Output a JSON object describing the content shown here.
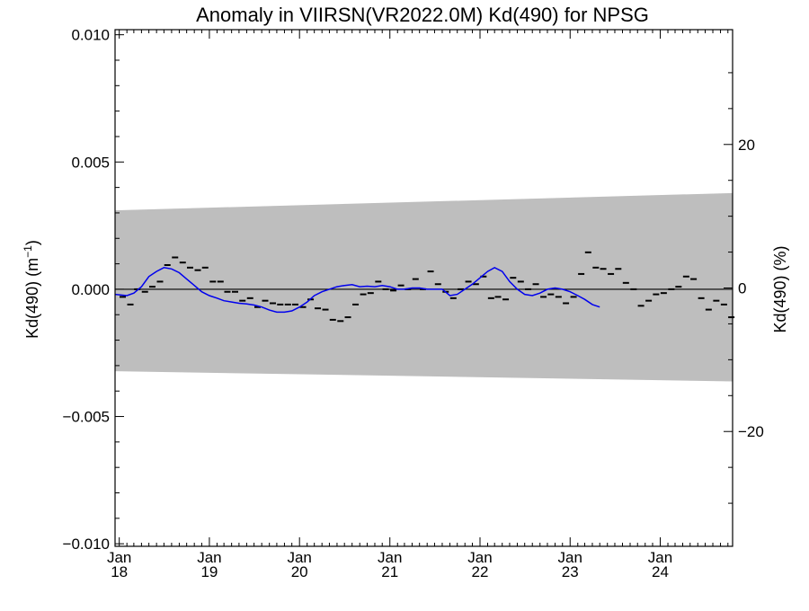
{
  "chart_data": {
    "type": "scatter",
    "title": "Anomaly in VIIRSN(VR2022.0M) Kd(490) for NPSG",
    "ylabel_left_main": "Kd(490) (m",
    "ylabel_left_sup": "−1",
    "ylabel_left_close": ")",
    "ylabel_right": "Kd(490) (%)",
    "x_range": [
      "2017-12-15",
      "2024-10-20"
    ],
    "ylim": [
      -0.0101,
      0.0102
    ],
    "ylim_right_pct": [
      -36,
      36
    ],
    "y_ticks": [
      {
        "value": -0.01,
        "label": "−0.010"
      },
      {
        "value": -0.005,
        "label": "−0.005"
      },
      {
        "value": 0.0,
        "label": "0.000"
      },
      {
        "value": 0.005,
        "label": "0.005"
      },
      {
        "value": 0.01,
        "label": "0.010"
      }
    ],
    "y_right_ticks": [
      {
        "value": -20,
        "label": "−20"
      },
      {
        "value": 0,
        "label": "0"
      },
      {
        "value": 20,
        "label": "20"
      }
    ],
    "x_ticks": [
      {
        "date": "2018-01-01",
        "month": "Jan",
        "year": "18"
      },
      {
        "date": "2019-01-01",
        "month": "Jan",
        "year": "19"
      },
      {
        "date": "2020-01-01",
        "month": "Jan",
        "year": "20"
      },
      {
        "date": "2021-01-01",
        "month": "Jan",
        "year": "21"
      },
      {
        "date": "2022-01-01",
        "month": "Jan",
        "year": "22"
      },
      {
        "date": "2023-01-01",
        "month": "Jan",
        "year": "23"
      },
      {
        "date": "2024-01-01",
        "month": "Jan",
        "year": "24"
      }
    ],
    "band": {
      "color": "#bebebe",
      "upper": [
        [
          "2017-12-15",
          0.0031
        ],
        [
          "2024-10-20",
          0.00378
        ]
      ],
      "lower": [
        [
          "2017-12-15",
          -0.00322
        ],
        [
          "2024-10-20",
          -0.00362
        ]
      ]
    },
    "zero_line_color": "#000000",
    "monthly_anomaly": {
      "color": "#000000",
      "points": [
        [
          "2018-01",
          -0.0003
        ],
        [
          "2018-02",
          -0.0006
        ],
        [
          "2018-03",
          0.0
        ],
        [
          "2018-04",
          -0.0001
        ],
        [
          "2018-05",
          0.0001
        ],
        [
          "2018-06",
          0.0003
        ],
        [
          "2018-07",
          0.00095
        ],
        [
          "2018-08",
          0.00125
        ],
        [
          "2018-09",
          0.00105
        ],
        [
          "2018-10",
          0.00085
        ],
        [
          "2018-11",
          0.00075
        ],
        [
          "2018-12",
          0.00085
        ],
        [
          "2019-01",
          0.0003
        ],
        [
          "2019-02",
          0.0003
        ],
        [
          "2019-03",
          -0.0001
        ],
        [
          "2019-04",
          -0.0001
        ],
        [
          "2019-05",
          -0.00045
        ],
        [
          "2019-06",
          -0.00035
        ],
        [
          "2019-07",
          -0.0007
        ],
        [
          "2019-08",
          -0.00045
        ],
        [
          "2019-09",
          -0.00055
        ],
        [
          "2019-10",
          -0.0006
        ],
        [
          "2019-11",
          -0.0006
        ],
        [
          "2019-12",
          -0.0006
        ],
        [
          "2020-01",
          -0.0007
        ],
        [
          "2020-02",
          -0.0004
        ],
        [
          "2020-03",
          -0.00075
        ],
        [
          "2020-04",
          -0.0008
        ],
        [
          "2020-05",
          -0.0012
        ],
        [
          "2020-06",
          -0.00125
        ],
        [
          "2020-07",
          -0.0011
        ],
        [
          "2020-08",
          -0.0006
        ],
        [
          "2020-09",
          -0.0002
        ],
        [
          "2020-10",
          -0.00015
        ],
        [
          "2020-11",
          0.0003
        ],
        [
          "2020-12",
          0.0
        ],
        [
          "2021-01",
          -5e-05
        ],
        [
          "2021-02",
          0.00015
        ],
        [
          "2021-03",
          0.0
        ],
        [
          "2021-04",
          0.0004
        ],
        [
          "2021-05",
          0.0
        ],
        [
          "2021-06",
          0.0007
        ],
        [
          "2021-07",
          0.0002
        ],
        [
          "2021-08",
          -0.0001
        ],
        [
          "2021-09",
          -0.00035
        ],
        [
          "2021-10",
          0.0
        ],
        [
          "2021-11",
          0.0003
        ],
        [
          "2021-12",
          0.0002
        ],
        [
          "2022-01",
          0.0005
        ],
        [
          "2022-02",
          -0.00035
        ],
        [
          "2022-03",
          -0.0003
        ],
        [
          "2022-04",
          -0.0004
        ],
        [
          "2022-05",
          0.00045
        ],
        [
          "2022-06",
          0.0003
        ],
        [
          "2022-07",
          0.0
        ],
        [
          "2022-08",
          0.0002
        ],
        [
          "2022-09",
          -0.0003
        ],
        [
          "2022-10",
          -0.0002
        ],
        [
          "2022-11",
          -0.0003
        ],
        [
          "2022-12",
          -0.00055
        ],
        [
          "2023-01",
          -0.0003
        ],
        [
          "2023-02",
          0.0006
        ],
        [
          "2023-03",
          0.00145
        ],
        [
          "2023-04",
          0.00085
        ],
        [
          "2023-05",
          0.0008
        ],
        [
          "2023-06",
          0.0006
        ],
        [
          "2023-07",
          0.0008
        ],
        [
          "2023-08",
          0.00025
        ],
        [
          "2023-09",
          0.0
        ],
        [
          "2023-10",
          -0.00065
        ],
        [
          "2023-11",
          -0.00045
        ],
        [
          "2023-12",
          -0.0002
        ],
        [
          "2024-01",
          -0.00015
        ],
        [
          "2024-02",
          0.0
        ],
        [
          "2024-03",
          0.0001
        ],
        [
          "2024-04",
          0.0005
        ],
        [
          "2024-05",
          0.0004
        ],
        [
          "2024-06",
          -0.00035
        ],
        [
          "2024-07",
          -0.0008
        ],
        [
          "2024-08",
          -0.00045
        ],
        [
          "2024-09",
          -0.0006
        ],
        [
          "2024-10",
          -0.0011
        ]
      ]
    },
    "smoothed_anomaly": {
      "color": "#0000ee",
      "points": [
        [
          "2017-12-15",
          -0.0002
        ],
        [
          "2018-02-01",
          -0.00025
        ],
        [
          "2018-03-01",
          -0.00015
        ],
        [
          "2018-04-01",
          0.0001
        ],
        [
          "2018-05-01",
          0.0005
        ],
        [
          "2018-06-01",
          0.0007
        ],
        [
          "2018-07-01",
          0.00085
        ],
        [
          "2018-08-01",
          0.0008
        ],
        [
          "2018-09-01",
          0.00065
        ],
        [
          "2018-10-01",
          0.0004
        ],
        [
          "2018-11-01",
          0.00015
        ],
        [
          "2018-12-01",
          -0.0001
        ],
        [
          "2019-01-01",
          -0.00025
        ],
        [
          "2019-02-01",
          -0.00035
        ],
        [
          "2019-03-01",
          -0.00045
        ],
        [
          "2019-04-01",
          -0.0005
        ],
        [
          "2019-05-01",
          -0.00055
        ],
        [
          "2019-06-01",
          -0.00058
        ],
        [
          "2019-07-01",
          -0.00062
        ],
        [
          "2019-08-01",
          -0.0007
        ],
        [
          "2019-09-01",
          -0.00082
        ],
        [
          "2019-10-01",
          -0.0009
        ],
        [
          "2019-11-01",
          -0.0009
        ],
        [
          "2019-12-01",
          -0.00085
        ],
        [
          "2020-01-01",
          -0.0007
        ],
        [
          "2020-02-01",
          -0.0005
        ],
        [
          "2020-03-01",
          -0.00025
        ],
        [
          "2020-04-01",
          -0.0001
        ],
        [
          "2020-05-01",
          0.0
        ],
        [
          "2020-06-01",
          0.0001
        ],
        [
          "2020-07-01",
          0.00015
        ],
        [
          "2020-08-01",
          0.00018
        ],
        [
          "2020-09-01",
          0.0001
        ],
        [
          "2020-10-01",
          0.00012
        ],
        [
          "2020-11-01",
          0.0001
        ],
        [
          "2020-12-01",
          0.00015
        ],
        [
          "2021-01-01",
          0.0001
        ],
        [
          "2021-02-01",
          0.0
        ],
        [
          "2021-03-01",
          0.0
        ],
        [
          "2021-04-01",
          5e-05
        ],
        [
          "2021-05-01",
          5e-05
        ],
        [
          "2021-06-01",
          0.0
        ],
        [
          "2021-07-01",
          0.0
        ],
        [
          "2021-08-01",
          0.0
        ],
        [
          "2021-09-01",
          -0.00025
        ],
        [
          "2021-10-01",
          -0.0002
        ],
        [
          "2021-11-01",
          0.0
        ],
        [
          "2021-12-01",
          0.0002
        ],
        [
          "2022-01-01",
          0.00045
        ],
        [
          "2022-02-01",
          0.0007
        ],
        [
          "2022-03-01",
          0.00085
        ],
        [
          "2022-04-01",
          0.0007
        ],
        [
          "2022-05-01",
          0.0003
        ],
        [
          "2022-06-01",
          0.0
        ],
        [
          "2022-07-01",
          -0.0002
        ],
        [
          "2022-08-01",
          -0.00025
        ],
        [
          "2022-09-01",
          -0.00015
        ],
        [
          "2022-10-01",
          0.0
        ],
        [
          "2022-11-01",
          5e-05
        ],
        [
          "2022-12-01",
          0.0
        ],
        [
          "2023-01-01",
          -0.0001
        ],
        [
          "2023-02-01",
          -0.00025
        ],
        [
          "2023-03-01",
          -0.0004
        ],
        [
          "2023-04-01",
          -0.0006
        ],
        [
          "2023-05-01",
          -0.0007
        ]
      ]
    }
  }
}
